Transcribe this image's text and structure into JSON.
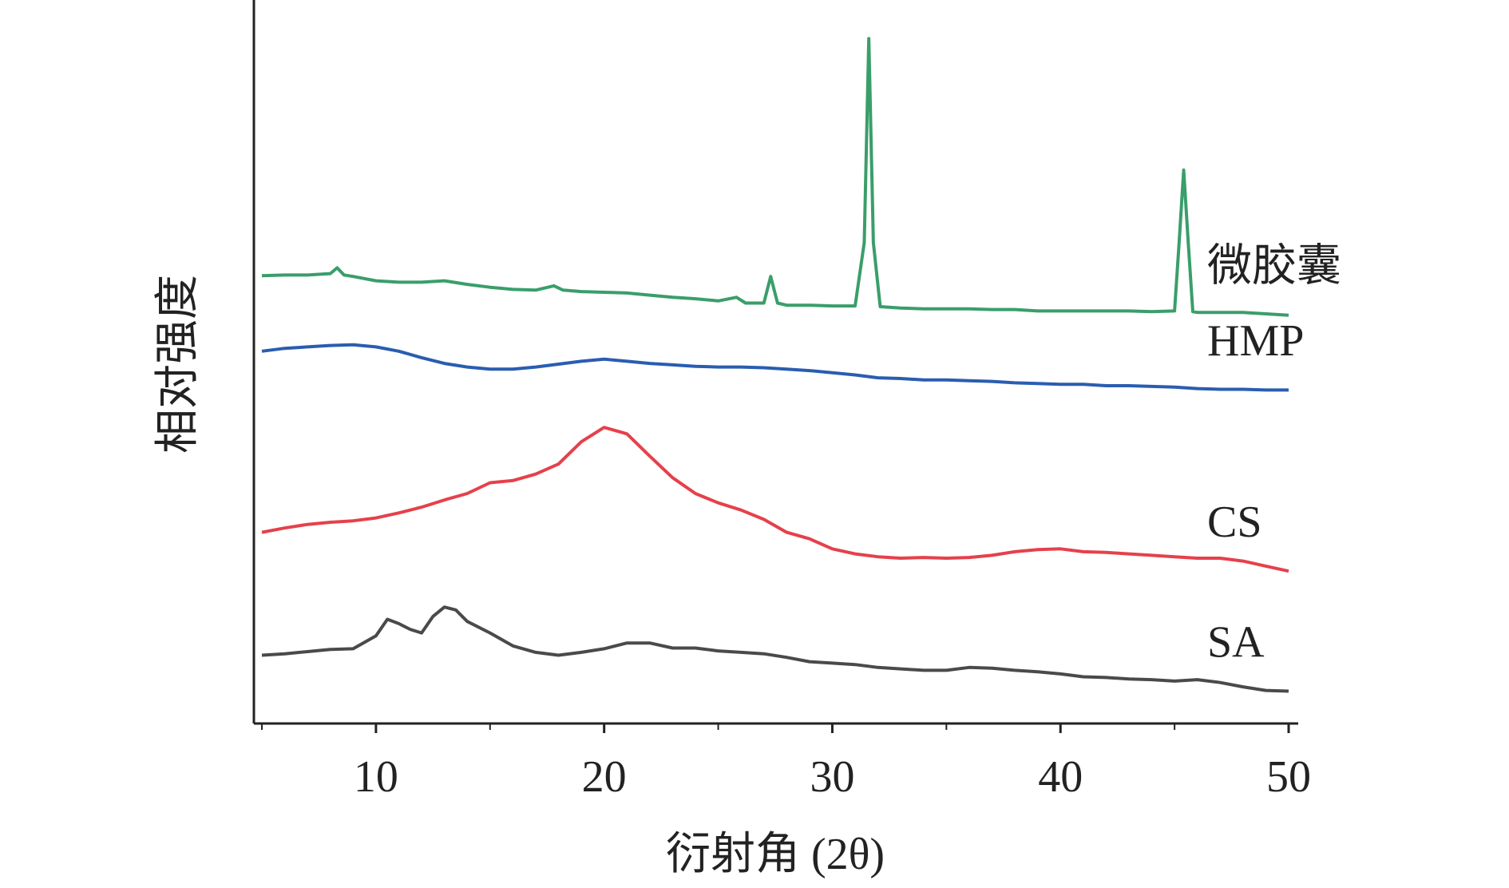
{
  "chart_data": {
    "type": "line",
    "x_label": "衍射角 (2θ)",
    "y_label": "相对强度",
    "xlim": [
      5,
      50
    ],
    "xticks": [
      10,
      20,
      30,
      40,
      50
    ],
    "xminorticks": [
      5,
      15,
      25,
      35,
      45
    ],
    "ylim": [
      0,
      100
    ],
    "series": [
      {
        "name": "微胶囊",
        "color": "#3a9e6a",
        "x": [
          5,
          6,
          7,
          8,
          8.3,
          8.6,
          9,
          10,
          11,
          12,
          13,
          14,
          15,
          16,
          17,
          17.8,
          18.2,
          19,
          20,
          21,
          22,
          23,
          24,
          25,
          25.8,
          26.2,
          27,
          27.3,
          27.6,
          28,
          29,
          30,
          31,
          31.4,
          31.6,
          31.8,
          32.1,
          33,
          34,
          35,
          36,
          37,
          38,
          39,
          40,
          41,
          42,
          43,
          44,
          45,
          45.2,
          45.4,
          45.6,
          45.8,
          46,
          47,
          48,
          49,
          50
        ],
        "values": [
          62.3,
          62.4,
          62.4,
          62.6,
          63.4,
          62.4,
          62.2,
          61.6,
          61.4,
          61.4,
          61.6,
          61.1,
          60.7,
          60.4,
          60.3,
          60.9,
          60.3,
          60.1,
          60.0,
          59.9,
          59.6,
          59.3,
          59.1,
          58.8,
          59.3,
          58.5,
          58.5,
          62.2,
          58.5,
          58.2,
          58.2,
          58.1,
          58.1,
          66.9,
          95.3,
          66.9,
          58.0,
          57.8,
          57.7,
          57.7,
          57.7,
          57.6,
          57.6,
          57.4,
          57.4,
          57.4,
          57.4,
          57.4,
          57.3,
          57.4,
          66.9,
          77.0,
          66.9,
          57.3,
          57.2,
          57.2,
          57.2,
          57.0,
          56.8
        ]
      },
      {
        "name": "HMP",
        "color": "#2a5db0",
        "x": [
          5,
          6,
          7,
          8,
          9,
          10,
          11,
          12,
          13,
          14,
          15,
          16,
          17,
          18,
          19,
          20,
          21,
          22,
          23,
          24,
          25,
          26,
          27,
          28,
          29,
          30,
          31,
          32,
          33,
          34,
          35,
          36,
          37,
          38,
          39,
          40,
          41,
          42,
          43,
          44,
          45,
          46,
          47,
          48,
          49,
          50
        ],
        "values": [
          51.8,
          52.2,
          52.4,
          52.6,
          52.7,
          52.4,
          51.8,
          50.9,
          50.1,
          49.6,
          49.3,
          49.3,
          49.6,
          50.0,
          50.4,
          50.7,
          50.4,
          50.1,
          49.9,
          49.7,
          49.6,
          49.6,
          49.5,
          49.3,
          49.1,
          48.8,
          48.5,
          48.1,
          48.0,
          47.8,
          47.8,
          47.7,
          47.6,
          47.4,
          47.3,
          47.2,
          47.2,
          47.0,
          47.0,
          46.9,
          46.8,
          46.6,
          46.5,
          46.5,
          46.4,
          46.4
        ]
      },
      {
        "name": "CS",
        "color": "#e5414b",
        "x": [
          5,
          6,
          7,
          8,
          9,
          10,
          11,
          12,
          13,
          14,
          15,
          16,
          17,
          18,
          19,
          20,
          21,
          22,
          23,
          24,
          25,
          26,
          27,
          28,
          29,
          30,
          31,
          32,
          33,
          34,
          35,
          36,
          37,
          38,
          39,
          40,
          41,
          42,
          43,
          44,
          45,
          46,
          47,
          48,
          49,
          50
        ],
        "values": [
          26.6,
          27.2,
          27.7,
          28.0,
          28.2,
          28.6,
          29.3,
          30.1,
          31.1,
          32.0,
          33.5,
          33.8,
          34.7,
          36.1,
          39.2,
          41.2,
          40.3,
          37.2,
          34.2,
          32.0,
          30.7,
          29.7,
          28.4,
          26.6,
          25.7,
          24.3,
          23.6,
          23.2,
          23.0,
          23.1,
          23.0,
          23.1,
          23.4,
          23.9,
          24.2,
          24.3,
          23.9,
          23.8,
          23.6,
          23.4,
          23.2,
          23.0,
          23.0,
          22.6,
          21.9,
          21.2
        ]
      },
      {
        "name": "SA",
        "color": "#4a4a4a",
        "x": [
          5,
          6,
          7,
          8,
          9,
          10,
          10.5,
          11,
          11.5,
          12,
          12.5,
          13,
          13.5,
          14,
          15,
          16,
          17,
          18,
          19,
          20,
          21,
          22,
          23,
          24,
          25,
          26,
          27,
          28,
          29,
          30,
          31,
          32,
          33,
          34,
          35,
          36,
          37,
          38,
          39,
          40,
          41,
          42,
          43,
          44,
          45,
          46,
          47,
          48,
          49,
          50
        ],
        "values": [
          9.5,
          9.7,
          10.0,
          10.3,
          10.4,
          12.2,
          14.5,
          13.9,
          13.1,
          12.6,
          14.9,
          16.2,
          15.8,
          14.2,
          12.6,
          10.8,
          9.9,
          9.5,
          9.9,
          10.4,
          11.2,
          11.2,
          10.5,
          10.5,
          10.1,
          9.9,
          9.7,
          9.2,
          8.6,
          8.4,
          8.2,
          7.8,
          7.6,
          7.4,
          7.4,
          7.8,
          7.7,
          7.4,
          7.2,
          6.9,
          6.5,
          6.4,
          6.2,
          6.1,
          5.9,
          6.1,
          5.7,
          5.1,
          4.6,
          4.5
        ]
      }
    ]
  }
}
